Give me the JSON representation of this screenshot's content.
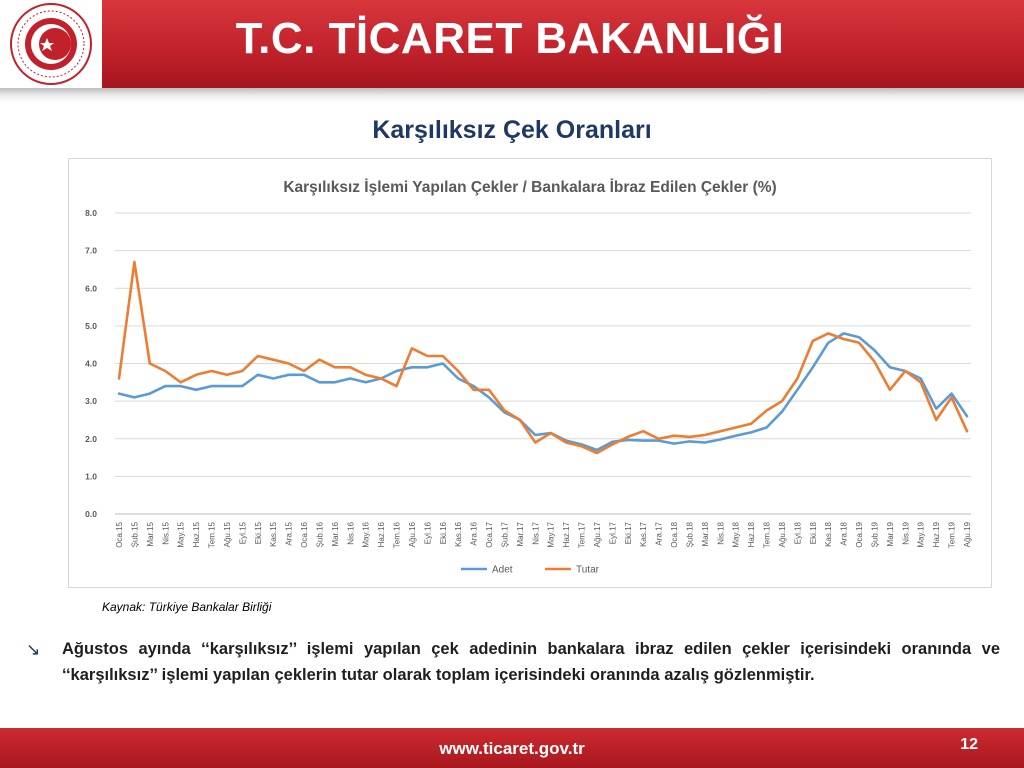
{
  "header": {
    "title": "T.C. TİCARET BAKANLIĞI"
  },
  "slide": {
    "title": "Karşılıksız Çek Oranları"
  },
  "source_note": "Kaynak: Türkiye Bankalar Birliği",
  "bullet": "Ağustos ayında ‘‘karşılıksız’’ işlemi yapılan çek adedinin bankalara ibraz edilen çekler içerisindeki oranında ve ‘‘karşılıksız’’ işlemi yapılan çeklerin tutar olarak toplam içerisindeki oranında azalış gözlenmiştir.",
  "footer": {
    "url": "www.ticaret.gov.tr",
    "page": "12"
  },
  "colors": {
    "header_red": "#c0212a",
    "title_navy": "#1f3864",
    "adet": "#5b9bd5",
    "tutar": "#ed7d31"
  },
  "icons": {
    "logo": "ministry-seal-icon",
    "bullet": "arrow-down-right-icon"
  },
  "chart_data": {
    "type": "line",
    "title": "Karşılıksız İşlemi Yapılan Çekler / Bankalara İbraz Edilen Çekler  (%)",
    "ylim": [
      0,
      8
    ],
    "yticks": [
      "0.0",
      "1.0",
      "2.0",
      "3.0",
      "4.0",
      "5.0",
      "6.0",
      "7.0",
      "8.0"
    ],
    "grid": true,
    "legend_position": "bottom",
    "categories": [
      "Oca.15",
      "Şub.15",
      "Mar.15",
      "Nis.15",
      "May.15",
      "Haz.15",
      "Tem.15",
      "Ağu.15",
      "Eyl.15",
      "Eki.15",
      "Kas.15",
      "Ara.15",
      "Oca.16",
      "Şub.16",
      "Mar.16",
      "Nis.16",
      "May.16",
      "Haz.16",
      "Tem.16",
      "Ağu.16",
      "Eyl.16",
      "Eki.16",
      "Kas.16",
      "Ara.16",
      "Oca.17",
      "Şub.17",
      "Mar.17",
      "Nis.17",
      "May.17",
      "Haz.17",
      "Tem.17",
      "Ağu.17",
      "Eyl.17",
      "Eki.17",
      "Kas.17",
      "Ara.17",
      "Oca.18",
      "Şub.18",
      "Mar.18",
      "Nis.18",
      "May.18",
      "Haz.18",
      "Tem.18",
      "Ağu.18",
      "Eyl.18",
      "Eki.18",
      "Kas.18",
      "Ara.18",
      "Oca.19",
      "Şub.19",
      "Mar.19",
      "Nis.19",
      "May.19",
      "Haz.19",
      "Tem.19",
      "Ağu.19"
    ],
    "series": [
      {
        "name": "Adet",
        "color": "#5b9bd5",
        "values": [
          3.2,
          3.1,
          3.2,
          3.4,
          3.4,
          3.3,
          3.4,
          3.4,
          3.4,
          3.7,
          3.6,
          3.7,
          3.7,
          3.5,
          3.5,
          3.6,
          3.5,
          3.6,
          3.8,
          3.9,
          3.9,
          4.0,
          3.6,
          3.4,
          3.1,
          2.7,
          2.5,
          2.1,
          2.15,
          1.95,
          1.85,
          1.7,
          1.92,
          1.97,
          1.95,
          1.95,
          1.87,
          1.93,
          1.9,
          1.98,
          2.08,
          2.17,
          2.3,
          2.72,
          3.3,
          3.9,
          4.55,
          4.8,
          4.7,
          4.35,
          3.9,
          3.8,
          3.6,
          2.8,
          3.2,
          2.6
        ]
      },
      {
        "name": "Tutar",
        "color": "#ed7d31",
        "values": [
          3.6,
          6.7,
          4.0,
          3.8,
          3.5,
          3.7,
          3.8,
          3.7,
          3.8,
          4.2,
          4.1,
          4.0,
          3.8,
          4.1,
          3.9,
          3.9,
          3.7,
          3.6,
          3.4,
          4.4,
          4.2,
          4.2,
          3.8,
          3.3,
          3.3,
          2.75,
          2.5,
          1.9,
          2.15,
          1.9,
          1.8,
          1.62,
          1.85,
          2.05,
          2.2,
          2.0,
          2.08,
          2.05,
          2.1,
          2.2,
          2.3,
          2.4,
          2.75,
          3.0,
          3.6,
          4.6,
          4.8,
          4.65,
          4.55,
          4.05,
          3.3,
          3.8,
          3.5,
          2.5,
          3.1,
          2.2
        ]
      }
    ]
  }
}
